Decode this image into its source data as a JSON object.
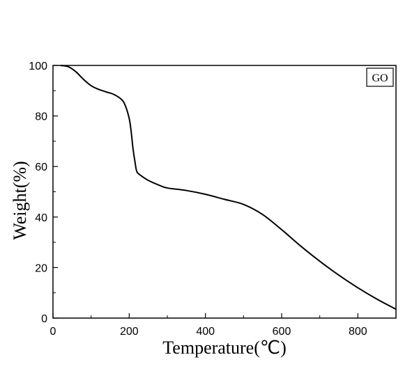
{
  "chart_data": {
    "type": "line",
    "title": "",
    "xlabel": "Temperature(℃)",
    "ylabel": "Weight(%)",
    "xlim": [
      0,
      900
    ],
    "ylim": [
      0,
      100
    ],
    "x_ticks": [
      "0",
      "200",
      "400",
      "600",
      "800"
    ],
    "y_ticks": [
      "0",
      "20",
      "40",
      "60",
      "80",
      "100"
    ],
    "grid": false,
    "legend_position": "top-right",
    "series": [
      {
        "name": "GO",
        "color": "#000000",
        "x": [
          20,
          40,
          60,
          80,
          100,
          120,
          140,
          160,
          180,
          190,
          200,
          205,
          210,
          215,
          220,
          230,
          250,
          280,
          300,
          350,
          400,
          450,
          500,
          550,
          600,
          650,
          700,
          750,
          800,
          850,
          900
        ],
        "y": [
          100,
          99.5,
          97.5,
          94.5,
          92,
          90.5,
          89.5,
          88.5,
          86.5,
          84,
          79,
          74,
          67,
          62,
          58,
          56.5,
          54.5,
          52.5,
          51.5,
          50.5,
          49,
          47,
          45,
          41,
          35,
          28.5,
          22.5,
          17,
          12,
          7.5,
          3.5
        ]
      }
    ]
  }
}
